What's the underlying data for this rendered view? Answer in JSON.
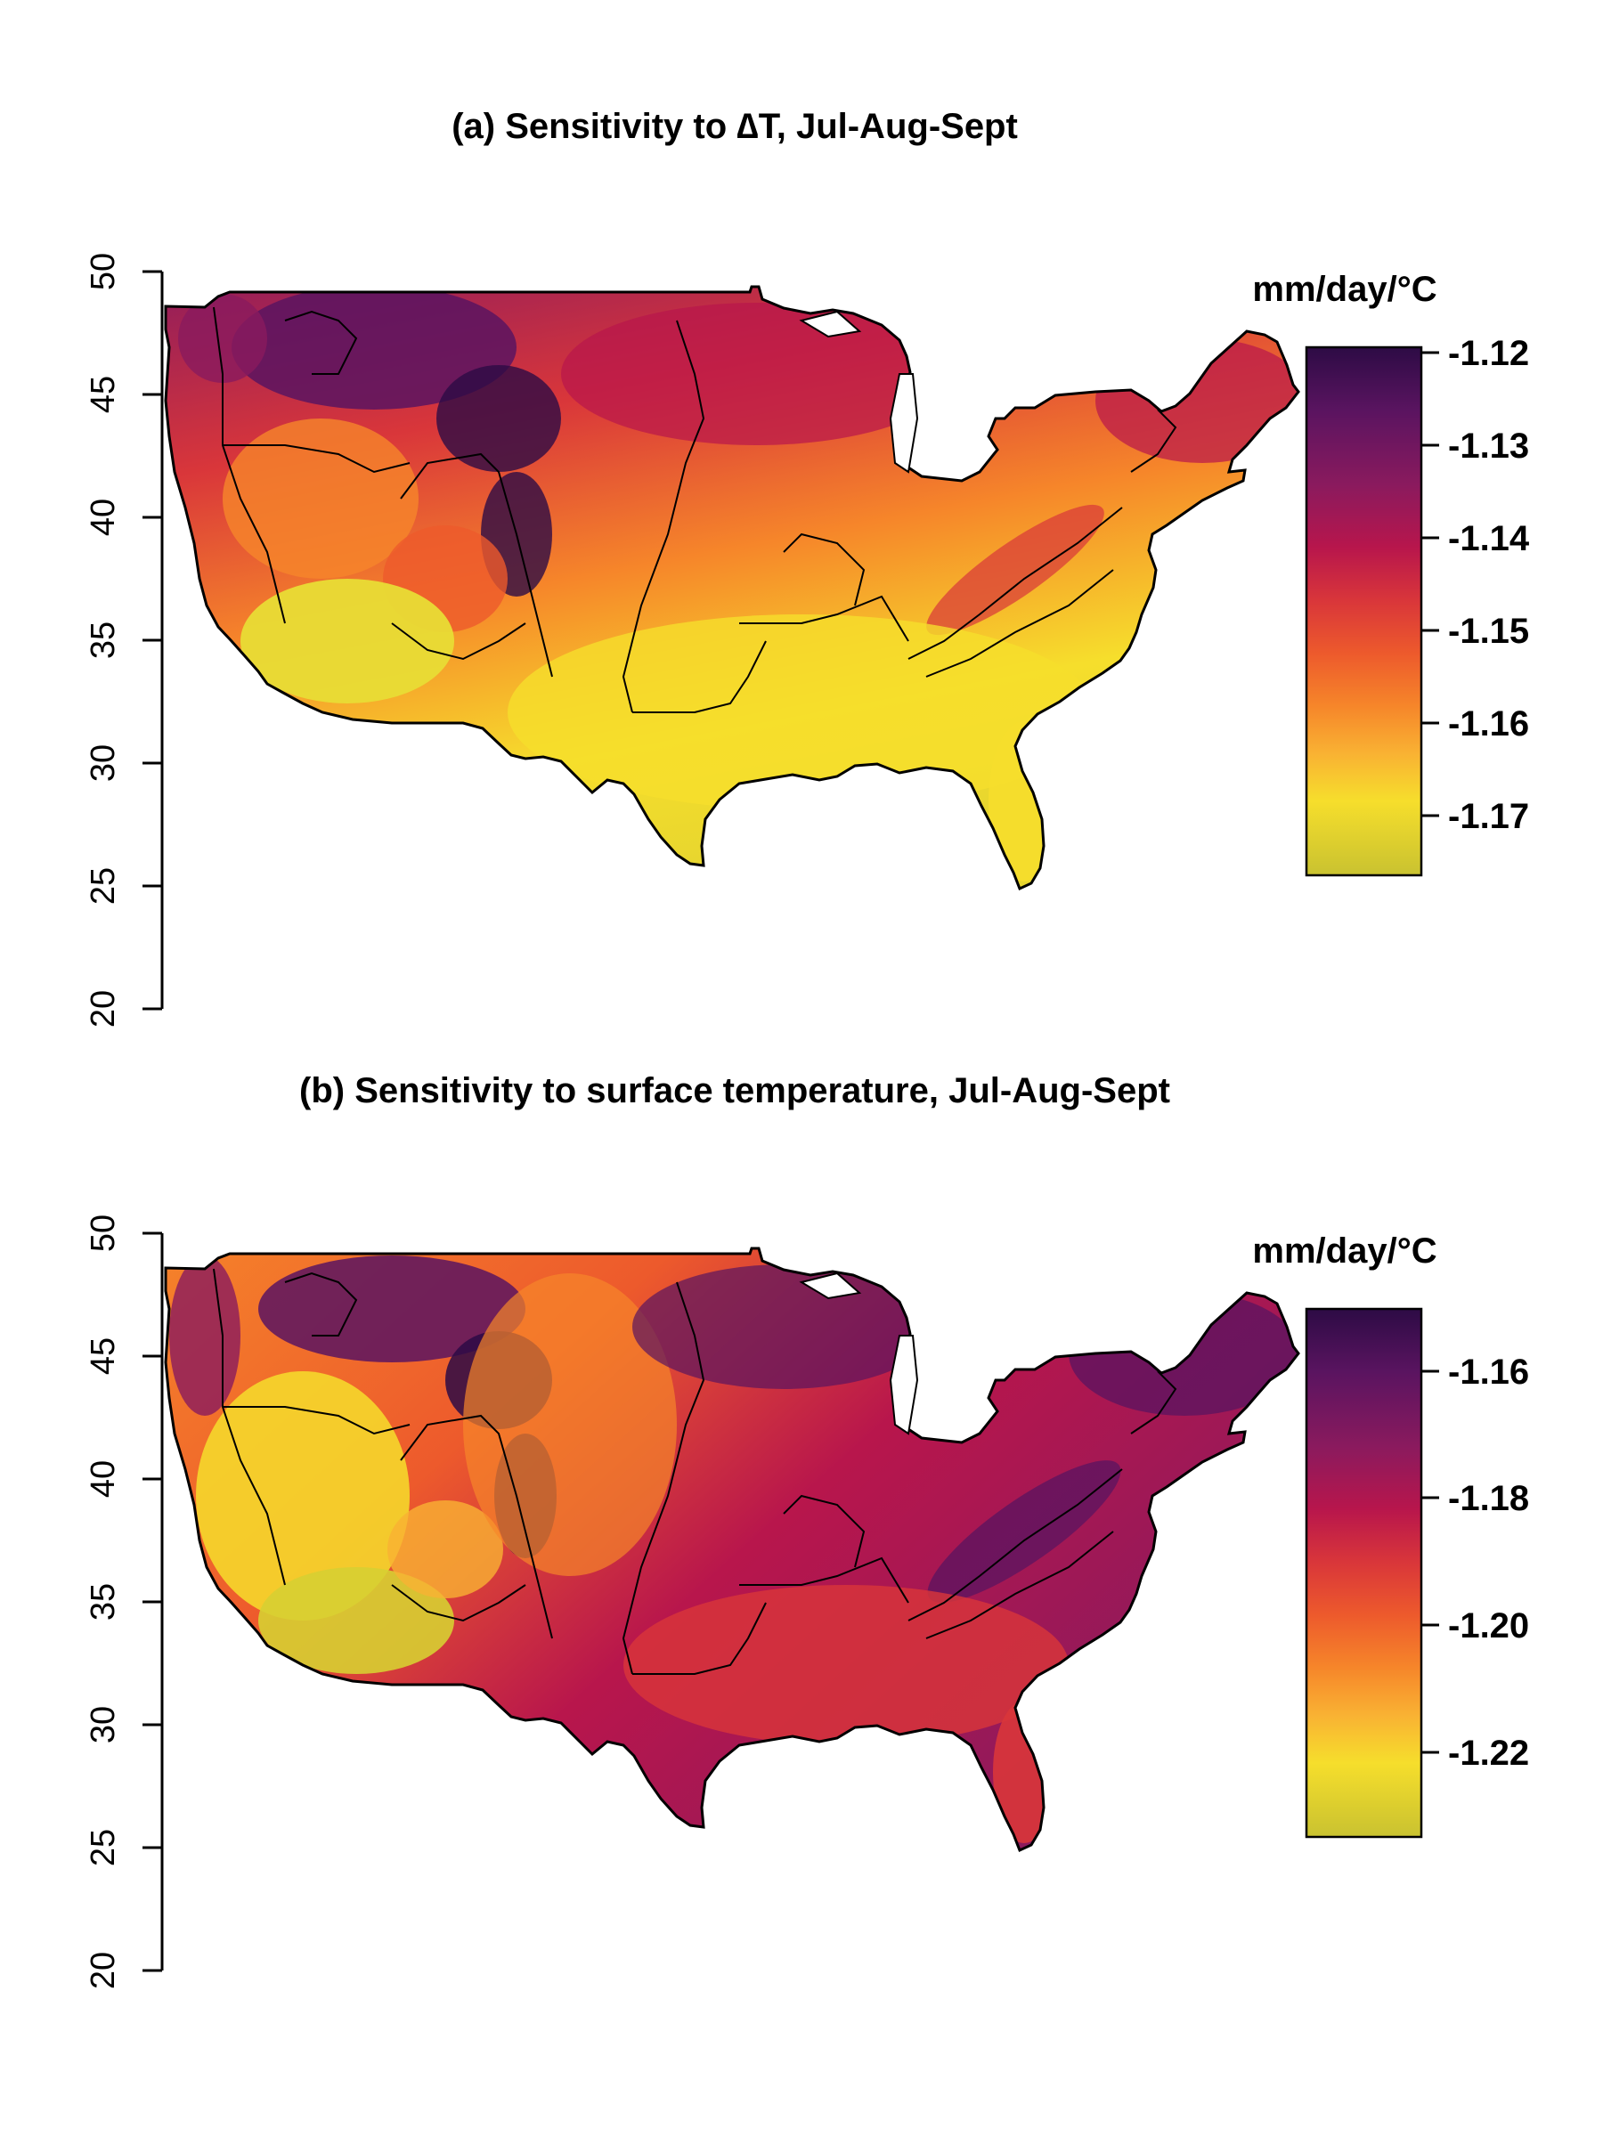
{
  "panels": [
    {
      "title": "(a) Sensitivity to ∆T, Jul-Aug-Sept",
      "y_axis_ticks": [
        "50",
        "45",
        "40",
        "35",
        "30",
        "25",
        "20"
      ],
      "colorbar": {
        "unit": "mm/day/°C",
        "ticks": [
          "-1.12",
          "-1.13",
          "-1.14",
          "-1.15",
          "-1.16",
          "-1.17"
        ],
        "range": [
          -1.176,
          -1.119
        ]
      }
    },
    {
      "title": "(b) Sensitivity to surface temperature, Jul-Aug-Sept",
      "y_axis_ticks": [
        "50",
        "45",
        "40",
        "35",
        "30",
        "25",
        "20"
      ],
      "colorbar": {
        "unit": "mm/day/°C",
        "ticks": [
          "-1.16",
          "-1.18",
          "-1.20",
          "-1.22"
        ],
        "range": [
          -1.234,
          -1.151
        ]
      }
    }
  ],
  "palette": [
    "#2d0b45",
    "#5a1460",
    "#8a1a5e",
    "#b8164c",
    "#d9363a",
    "#ed5a2c",
    "#f6862a",
    "#f9b233",
    "#f6de2c",
    "#d7cf32"
  ]
}
